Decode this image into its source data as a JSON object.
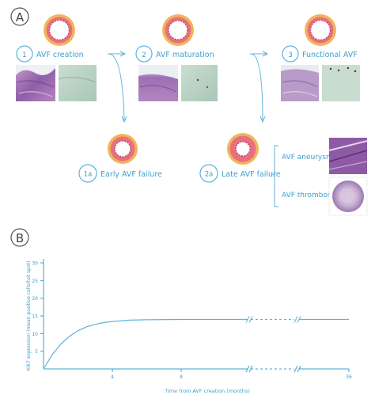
{
  "panel_a": {
    "letter": "A",
    "stages": [
      {
        "number": "1",
        "label": "AVF creation"
      },
      {
        "number": "2",
        "label": "AVF maturation"
      },
      {
        "number": "3",
        "label": "Functional AVF"
      }
    ],
    "failures": [
      {
        "number": "1a",
        "label": "Early AVF failure"
      },
      {
        "number": "2a",
        "label": "Late AVF failure"
      }
    ],
    "outcomes": [
      {
        "label": "AVF aneurysm"
      },
      {
        "label": "AVF thrombosis"
      }
    ]
  },
  "panel_b": {
    "letter": "B"
  },
  "chart_data": {
    "type": "line",
    "xlabel": "Time from AVF creation (months)",
    "ylabel": "Ki67 expression (mean positive cells/hot spot)",
    "x_ticks": [
      "4",
      "8",
      "36"
    ],
    "y_ticks": [
      "5",
      "10",
      "15",
      "20",
      "25",
      "30"
    ],
    "ylim": [
      0,
      30
    ],
    "axis_breaks_x": [
      "between 8 and 36"
    ],
    "series": [
      {
        "x": [
          0,
          0.5,
          1,
          1.5,
          2,
          2.5,
          3,
          3.5,
          4,
          5,
          6,
          8,
          36
        ],
        "y": [
          0,
          4,
          7,
          9.2,
          10.8,
          11.9,
          12.6,
          13.1,
          13.4,
          13.8,
          13.9,
          14,
          14
        ]
      }
    ],
    "colors": {
      "line": "#5bb3dc",
      "axis": "#3e9fd0"
    }
  }
}
